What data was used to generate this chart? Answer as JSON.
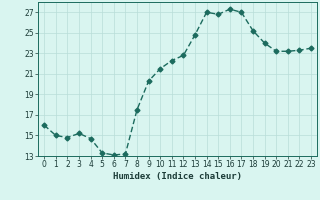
{
  "x": [
    0,
    1,
    2,
    3,
    4,
    5,
    6,
    7,
    8,
    9,
    10,
    11,
    12,
    13,
    14,
    15,
    16,
    17,
    18,
    19,
    20,
    21,
    22,
    23
  ],
  "y": [
    16.0,
    15.0,
    14.8,
    15.2,
    14.7,
    13.3,
    13.1,
    13.2,
    17.5,
    20.3,
    21.5,
    22.3,
    22.8,
    24.8,
    27.0,
    26.8,
    27.3,
    27.0,
    25.2,
    24.0,
    23.2,
    23.2,
    23.3,
    23.5
  ],
  "line_color": "#1c6b5e",
  "marker": "D",
  "marker_size": 2.5,
  "bg_color": "#d9f5f0",
  "grid_color": "#b8ddd8",
  "xlabel": "Humidex (Indice chaleur)",
  "ylim": [
    13,
    28
  ],
  "xlim": [
    -0.5,
    23.5
  ],
  "yticks": [
    13,
    15,
    17,
    19,
    21,
    23,
    25,
    27
  ],
  "xticks": [
    0,
    1,
    2,
    3,
    4,
    5,
    6,
    7,
    8,
    9,
    10,
    11,
    12,
    13,
    14,
    15,
    16,
    17,
    18,
    19,
    20,
    21,
    22,
    23
  ],
  "xlabel_fontsize": 6.5,
  "tick_fontsize": 5.5,
  "line_width": 1.0
}
